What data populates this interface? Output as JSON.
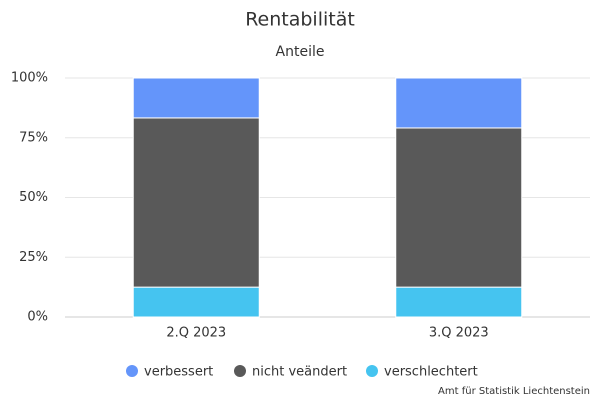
{
  "chart_data": {
    "type": "stacked_bar",
    "title": "Rentabilität",
    "subtitle": "Anteile",
    "categories": [
      "2.Q 2023",
      "3.Q 2023"
    ],
    "series": [
      {
        "name": "verbessert",
        "color": "#6495fa",
        "values": [
          16.7,
          20.9
        ]
      },
      {
        "name": "nicht veändert",
        "color": "#595959",
        "values": [
          70.8,
          66.6
        ]
      },
      {
        "name": "verschlechtert",
        "color": "#45c4f0",
        "values": [
          12.5,
          12.5
        ]
      }
    ],
    "ylim": [
      0,
      100
    ],
    "yticks": [
      {
        "value": 0,
        "label": "0%"
      },
      {
        "value": 25,
        "label": "25%"
      },
      {
        "value": 50,
        "label": "50%"
      },
      {
        "value": 75,
        "label": "75%"
      },
      {
        "value": 100,
        "label": "100%"
      }
    ],
    "grid": true,
    "legend": "bottom",
    "credit": "Amt für Statistik Liechtenstein"
  }
}
